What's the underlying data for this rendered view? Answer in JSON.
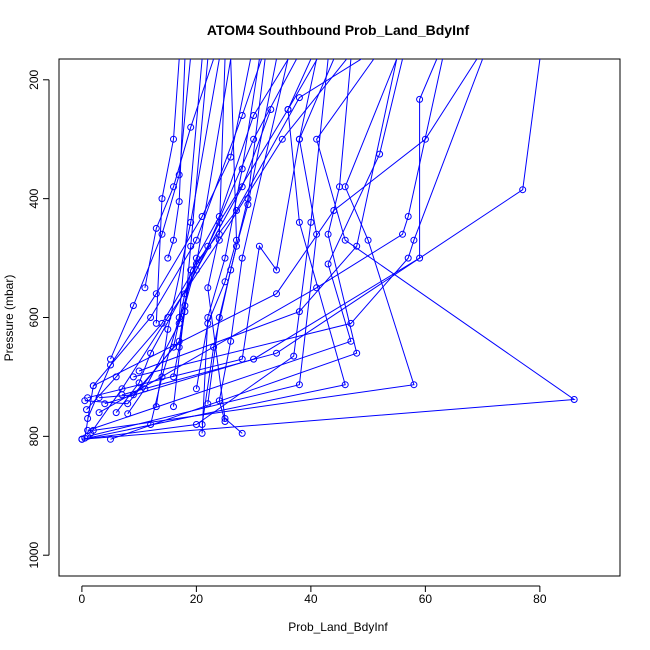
{
  "chart_data": {
    "type": "line",
    "title": "ATOM4 Southbound Prob_Land_BdyInf",
    "xlabel": "Prob_Land_BdyInf",
    "ylabel": "Pressure (mbar)",
    "xlim": [
      -4,
      94
    ],
    "ylim": [
      1035,
      165
    ],
    "y_reversed": true,
    "x_ticks": [
      0,
      20,
      40,
      60,
      80
    ],
    "y_ticks": [
      200,
      400,
      600,
      800,
      1000
    ],
    "color": "#0000ff",
    "marker": "open-circle",
    "grid": false,
    "series": [
      {
        "points": [
          [
            0.5,
            803
          ],
          [
            2,
            715
          ],
          [
            12,
            600
          ],
          [
            20,
            470
          ],
          [
            28,
            260
          ],
          [
            33,
            120
          ]
        ]
      },
      {
        "points": [
          [
            1,
            770
          ],
          [
            5,
            680
          ],
          [
            13,
            560
          ],
          [
            21,
            430
          ],
          [
            26,
            330
          ],
          [
            30,
            140
          ]
        ]
      },
      {
        "points": [
          [
            0.8,
            755
          ],
          [
            6,
            700
          ],
          [
            14,
            610
          ],
          [
            22,
            480
          ],
          [
            30,
            300
          ],
          [
            40,
            120
          ]
        ]
      },
      {
        "points": [
          [
            1.5,
            795
          ],
          [
            7,
            720
          ],
          [
            15,
            600
          ],
          [
            24,
            470
          ],
          [
            35,
            300
          ],
          [
            50,
            120
          ]
        ]
      },
      {
        "points": [
          [
            0.5,
            740
          ],
          [
            8,
            745
          ],
          [
            16,
            650
          ],
          [
            18,
            560
          ],
          [
            24,
            440
          ],
          [
            36,
            250
          ],
          [
            42,
            150
          ]
        ]
      },
      {
        "points": [
          [
            3,
            735
          ],
          [
            9,
            730
          ],
          [
            17,
            640
          ],
          [
            19,
            520
          ],
          [
            27,
            420
          ],
          [
            38,
            230
          ],
          [
            58,
            110
          ]
        ]
      },
      {
        "points": [
          [
            6,
            760
          ],
          [
            10,
            710
          ],
          [
            12,
            660
          ],
          [
            20,
            520
          ],
          [
            28,
            380
          ],
          [
            33,
            250
          ]
        ]
      },
      {
        "points": [
          [
            8,
            762
          ],
          [
            11,
            720
          ],
          [
            17,
            610
          ],
          [
            20,
            500
          ],
          [
            24,
            430
          ],
          [
            30,
            260
          ],
          [
            37,
            150
          ]
        ]
      },
      {
        "points": [
          [
            5,
            670
          ],
          [
            9,
            580
          ],
          [
            14,
            460
          ],
          [
            17,
            360
          ],
          [
            19,
            160
          ]
        ]
      },
      {
        "points": [
          [
            11,
            550
          ],
          [
            13,
            450
          ],
          [
            16,
            380
          ],
          [
            19,
            280
          ],
          [
            23,
            165
          ]
        ]
      },
      {
        "points": [
          [
            13,
            610
          ],
          [
            14,
            400
          ],
          [
            16,
            300
          ],
          [
            17,
            165
          ]
        ]
      },
      {
        "points": [
          [
            15,
            500
          ],
          [
            16,
            470
          ],
          [
            17,
            405
          ],
          [
            18,
            165
          ]
        ]
      },
      {
        "points": [
          [
            16,
            700
          ],
          [
            17,
            650
          ],
          [
            18,
            590
          ],
          [
            19,
            480
          ],
          [
            22,
            165
          ]
        ]
      },
      {
        "points": [
          [
            12,
            780
          ],
          [
            14,
            700
          ],
          [
            17,
            600
          ],
          [
            21,
            165
          ]
        ]
      },
      {
        "points": [
          [
            13,
            750
          ],
          [
            15,
            620
          ],
          [
            19,
            440
          ],
          [
            24,
            165
          ]
        ]
      },
      {
        "points": [
          [
            16,
            750
          ],
          [
            18,
            580
          ],
          [
            20,
            510
          ],
          [
            26,
            165
          ]
        ]
      },
      {
        "points": [
          [
            21,
            780
          ],
          [
            23,
            650
          ],
          [
            26,
            520
          ],
          [
            29,
            400
          ],
          [
            32,
            165
          ]
        ]
      },
      {
        "points": [
          [
            21,
            795
          ],
          [
            22,
            600
          ],
          [
            25,
            500
          ],
          [
            28,
            350
          ],
          [
            31,
            165
          ]
        ]
      },
      {
        "points": [
          [
            25,
            775
          ],
          [
            24,
            740
          ],
          [
            26,
            640
          ],
          [
            28,
            500
          ],
          [
            36,
            165
          ]
        ]
      },
      {
        "points": [
          [
            22,
            745
          ],
          [
            24,
            600
          ],
          [
            27,
            480
          ],
          [
            29,
            410
          ],
          [
            34,
            165
          ]
        ]
      },
      {
        "points": [
          [
            20,
            720
          ],
          [
            22,
            610
          ],
          [
            25,
            540
          ],
          [
            27,
            470
          ],
          [
            26,
            165
          ]
        ]
      },
      {
        "points": [
          [
            28,
            795
          ],
          [
            25,
            770
          ],
          [
            22,
            550
          ],
          [
            24,
            460
          ],
          [
            25,
            165
          ]
        ]
      },
      {
        "points": [
          [
            1,
            735
          ],
          [
            28,
            670
          ],
          [
            31,
            480
          ],
          [
            34,
            520
          ],
          [
            38,
            300
          ],
          [
            44,
            165
          ]
        ]
      },
      {
        "points": [
          [
            0,
            805
          ],
          [
            20,
            780
          ],
          [
            37,
            665
          ],
          [
            40,
            440
          ],
          [
            43,
            165
          ]
        ]
      },
      {
        "points": [
          [
            0,
            805
          ],
          [
            46,
            713
          ],
          [
            38,
            440
          ],
          [
            36,
            250
          ],
          [
            40,
            165
          ]
        ]
      },
      {
        "points": [
          [
            1,
            800
          ],
          [
            38,
            713
          ],
          [
            41,
            460
          ],
          [
            38,
            300
          ],
          [
            41,
            165
          ]
        ]
      },
      {
        "points": [
          [
            5,
            805
          ],
          [
            48,
            660
          ],
          [
            43,
            460
          ],
          [
            45,
            380
          ],
          [
            47,
            165
          ]
        ]
      },
      {
        "points": [
          [
            0,
            805
          ],
          [
            86,
            738
          ],
          [
            46,
            470
          ],
          [
            41,
            300
          ],
          [
            51,
            165
          ]
        ]
      },
      {
        "points": [
          [
            2,
            790
          ],
          [
            58,
            713
          ],
          [
            50,
            470
          ],
          [
            46,
            380
          ],
          [
            55,
            165
          ]
        ]
      },
      {
        "points": [
          [
            1,
            790
          ],
          [
            47,
            640
          ],
          [
            43,
            510
          ],
          [
            52,
            325
          ],
          [
            56,
            165
          ]
        ]
      },
      {
        "points": [
          [
            3,
            760
          ],
          [
            41,
            550
          ],
          [
            56,
            460
          ],
          [
            57,
            430
          ],
          [
            63,
            165
          ]
        ]
      },
      {
        "points": [
          [
            4,
            745
          ],
          [
            30,
            670
          ],
          [
            59,
            500
          ],
          [
            59,
            233
          ],
          [
            62,
            165
          ]
        ]
      },
      {
        "points": [
          [
            7,
            730
          ],
          [
            34,
            660
          ],
          [
            77,
            385
          ],
          [
            80,
            165
          ]
        ]
      },
      {
        "points": [
          [
            9,
            700
          ],
          [
            47,
            610
          ],
          [
            57,
            500
          ],
          [
            58,
            470
          ],
          [
            70,
            165
          ]
        ]
      },
      {
        "points": [
          [
            10,
            690
          ],
          [
            38,
            590
          ],
          [
            48,
            480
          ],
          [
            55,
            165
          ]
        ]
      },
      {
        "points": [
          [
            2,
            715
          ],
          [
            34,
            560
          ],
          [
            44,
            420
          ],
          [
            60,
            300
          ],
          [
            69,
            165
          ]
        ]
      }
    ]
  }
}
